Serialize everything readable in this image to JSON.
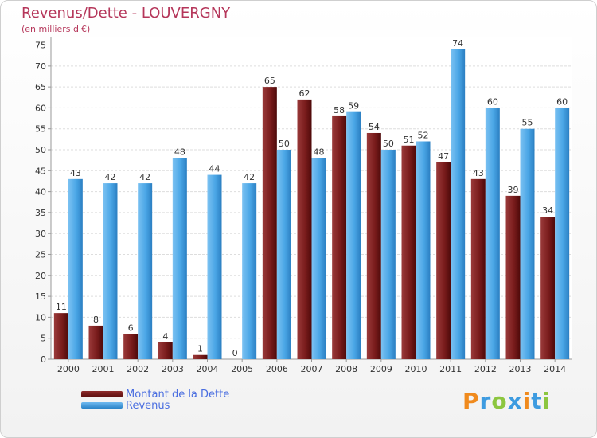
{
  "chart_data": {
    "type": "bar",
    "title": "Revenus/Dette - LOUVERGNY",
    "subtitle": "(en milliers d'€)",
    "categories": [
      "2000",
      "2001",
      "2002",
      "2003",
      "2004",
      "2005",
      "2006",
      "2007",
      "2008",
      "2009",
      "2010",
      "2011",
      "2012",
      "2013",
      "2014"
    ],
    "series": [
      {
        "name": "Montant de la Dette",
        "color": "#7a1c1c",
        "values": [
          11,
          8,
          6,
          4,
          1,
          0,
          65,
          62,
          58,
          54,
          51,
          47,
          43,
          39,
          34
        ]
      },
      {
        "name": "Revenus",
        "color": "#3d9be0",
        "values": [
          43,
          42,
          42,
          48,
          44,
          42,
          50,
          48,
          59,
          50,
          52,
          74,
          60,
          55,
          60
        ]
      }
    ],
    "yticks": [
      0,
      5,
      10,
      15,
      20,
      25,
      30,
      35,
      40,
      45,
      50,
      55,
      60,
      65,
      70,
      75
    ],
    "ylim": [
      0,
      77
    ],
    "xlabel": "",
    "ylabel": "",
    "grid": true,
    "legend": "bottom-left"
  },
  "logo": {
    "text": "Proxiti",
    "colors": [
      "#f08a1d",
      "#3d9be0",
      "#8cc63f",
      "#3d9be0",
      "#f08a1d",
      "#3d9be0",
      "#8cc63f"
    ]
  }
}
